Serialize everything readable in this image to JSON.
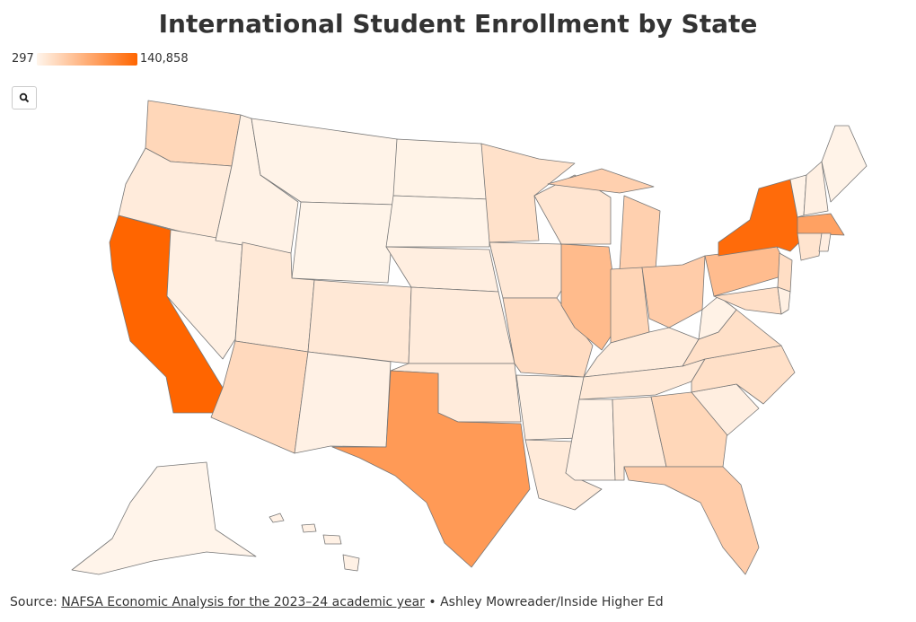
{
  "chart_data": {
    "type": "choropleth",
    "title": "International Student Enrollment by State",
    "legend": {
      "min": 297,
      "max": {
        "value": 140858,
        "label": "140,858"
      },
      "low_color": "#fff5eb",
      "high_color": "#ff6500"
    },
    "values": [
      30000,
      10000,
      140858,
      5000,
      3000,
      2000,
      1500,
      12000,
      28000,
      13000,
      4000,
      2500,
      1500,
      7000,
      10000,
      10000,
      89500,
      20000,
      13000,
      25000,
      6000,
      11000,
      16000,
      57000,
      36000,
      32000,
      40000,
      9000,
      12000,
      4000,
      11000,
      30000,
      40000,
      7000,
      21000,
      21000,
      3000,
      56000,
      135000,
      23000,
      22000,
      5000,
      2000,
      5000,
      2000,
      82000,
      17000,
      7000,
      800,
      4000
    ],
    "source": {
      "prefix": "Source:",
      "link": "NAFSA Economic Analysis for the 2023–24 academic year",
      "suffix": "• Ashley Mowreader/Inside Higher Ed"
    }
  }
}
